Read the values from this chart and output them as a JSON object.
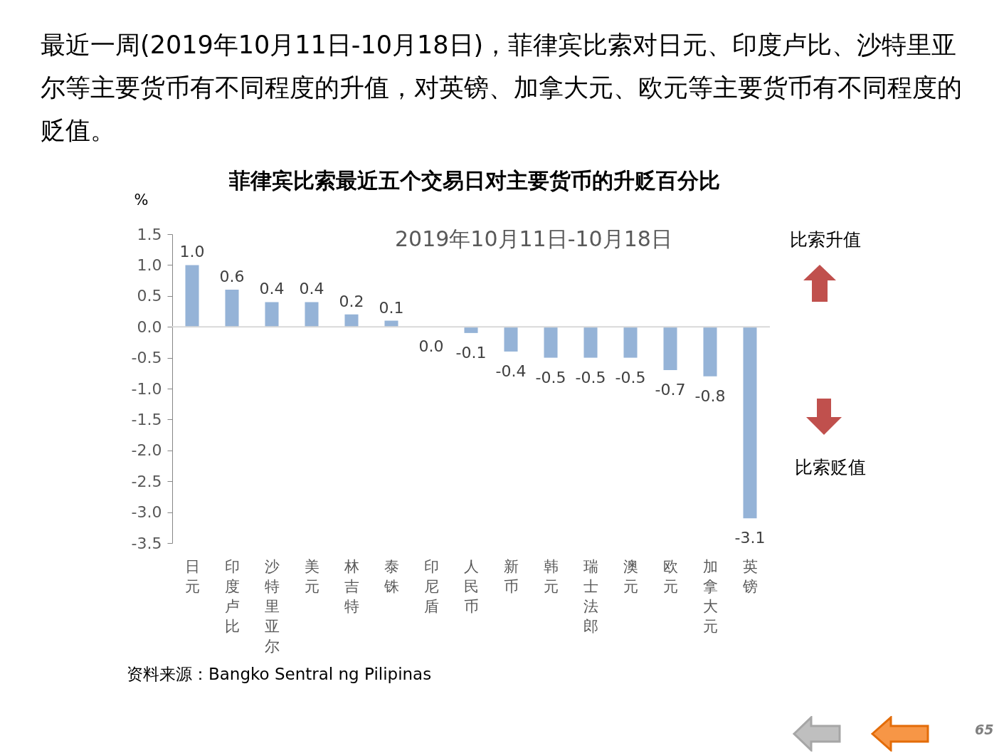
{
  "chart_data": {
    "type": "bar",
    "title": "菲律宾比索最近五个交易日对主要货币的升贬百分比",
    "ylabel": "%",
    "categories": [
      "日元",
      "印度卢比",
      "沙特里亚尔",
      "美元",
      "林吉特",
      "泰铢",
      "印尼盾",
      "人民币",
      "新币",
      "韩元",
      "瑞士法郎",
      "澳元",
      "欧元",
      "加拿大元",
      "英镑"
    ],
    "values": [
      1.0,
      0.6,
      0.4,
      0.4,
      0.2,
      0.1,
      0.0,
      -0.1,
      -0.4,
      -0.5,
      -0.5,
      -0.5,
      -0.7,
      -0.8,
      -3.1
    ],
    "color": "#95b3d7",
    "value_labels": [
      "1.0",
      "0.6",
      "0.4",
      "0.4",
      "0.2",
      "0.1",
      "0.0",
      "-0.1",
      "-0.4",
      "-0.5",
      "-0.5",
      "-0.5",
      "-0.7",
      "-0.8",
      "-3.1"
    ],
    "ylim": [
      -3.5,
      1.5
    ],
    "yticks": [
      {
        "value": 1.5,
        "label": "1.5"
      },
      {
        "value": 1.0,
        "label": "1.0"
      },
      {
        "value": 0.5,
        "label": "0.5"
      },
      {
        "value": 0.0,
        "label": "0.0"
      },
      {
        "value": -0.5,
        "label": "-0.5"
      },
      {
        "value": -1.0,
        "label": "-1.0"
      },
      {
        "value": -1.5,
        "label": "-1.5"
      },
      {
        "value": -2.0,
        "label": "-2.0"
      },
      {
        "value": -2.5,
        "label": "-2.5"
      },
      {
        "value": -3.0,
        "label": "-3.0"
      },
      {
        "value": -3.5,
        "label": "-3.5"
      }
    ],
    "ref_lines": [
      {
        "axis": "y",
        "value": 0,
        "color": "#d9d9d9"
      }
    ],
    "grid": false,
    "annotations": [
      "最近一周(2019年10月11日-10月18日)，菲律宾比索对日元、印度卢比、沙特里亚尔等主要货币有不同程度的升值，对英镑、加拿大元、欧元等主要货币有不同程度的贬值。",
      "2019年10月11日-10月18日",
      "比索升值",
      "比索贬值",
      "资料来源：Bangko Sentral ng Pilipinas",
      "65"
    ]
  }
}
